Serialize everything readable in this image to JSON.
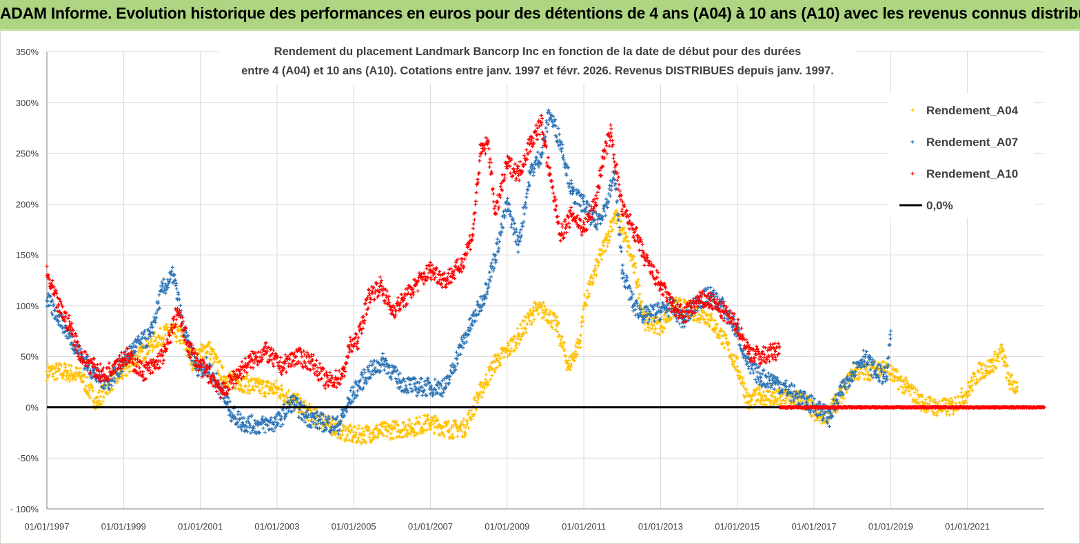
{
  "header": {
    "title": "ADAM Informe. Evolution historique des performances en euros pour des détentions de 4 ans (A04) à 10 ans (A10) avec les revenus connus distribués"
  },
  "chart_data": {
    "type": "scatter",
    "title_lines": [
      "Rendement du placement Landmark Bancorp Inc en fonction de la date de début pour des durées",
      "entre 4 (A04) et 10 ans (A10).  Cotations entre janv. 1997 et févr. 2026. Revenus DISTRIBUES depuis janv. 1997."
    ],
    "x_range": [
      1997.0,
      2023.0
    ],
    "x_ticks": [
      "01/01/1997",
      "01/01/1999",
      "01/01/2001",
      "01/01/2003",
      "01/01/2005",
      "01/01/2007",
      "01/01/2009",
      "01/01/2011",
      "01/01/2013",
      "01/01/2015",
      "01/01/2017",
      "01/01/2019",
      "01/01/2021"
    ],
    "y_range": [
      -100,
      350
    ],
    "y_ticks": [
      "350%",
      "300%",
      "250%",
      "200%",
      "150%",
      "100%",
      "50%",
      "0%",
      "-50%",
      "- 100%"
    ],
    "y_tick_values": [
      350,
      300,
      250,
      200,
      150,
      100,
      50,
      0,
      -50,
      -100
    ],
    "grid": true,
    "legend_position": "top-right",
    "colors": {
      "A04": "#ffc000",
      "A07": "#2e75b6",
      "A10": "#ff0000",
      "zero": "#000000",
      "grid": "#d9d9d9",
      "axis": "#7f7f7f"
    },
    "series": [
      {
        "name": "Rendement_A04",
        "color": "#ffc000",
        "x": [
          1997.0,
          1997.5,
          1997.9,
          1998.3,
          1998.6,
          1999.0,
          1999.4,
          1999.8,
          2000.2,
          2000.5,
          2000.8,
          2001.2,
          2001.6,
          2002.0,
          2002.5,
          2003.0,
          2003.5,
          2004.0,
          2004.5,
          2005.0,
          2005.5,
          2006.0,
          2006.5,
          2007.0,
          2007.5,
          2007.9,
          2008.3,
          2008.7,
          2009.0,
          2009.3,
          2009.7,
          2010.0,
          2010.3,
          2010.6,
          2010.9,
          2011.0,
          2011.3,
          2011.6,
          2011.8,
          2012.0,
          2012.3,
          2012.6,
          2013.0,
          2013.4,
          2013.8,
          2014.2,
          2014.6,
          2015.0,
          2015.3,
          2015.6,
          2016.0,
          2016.4,
          2016.8,
          2017.1,
          2017.4,
          2017.7,
          2018.0,
          2018.4,
          2018.8,
          2019.1,
          2019.4,
          2019.8,
          2020.2,
          2020.6,
          2021.0,
          2021.3,
          2021.6,
          2021.9,
          2022.1,
          2022.3
        ],
        "y": [
          35,
          35,
          30,
          5,
          22,
          35,
          50,
          65,
          75,
          70,
          45,
          60,
          30,
          25,
          20,
          18,
          5,
          -10,
          -20,
          -28,
          -25,
          -22,
          -20,
          -15,
          -22,
          -20,
          15,
          45,
          55,
          70,
          95,
          95,
          80,
          40,
          65,
          100,
          135,
          165,
          190,
          175,
          140,
          85,
          80,
          100,
          95,
          90,
          70,
          40,
          5,
          12,
          8,
          10,
          5,
          -10,
          -5,
          10,
          35,
          35,
          40,
          30,
          20,
          5,
          0,
          0,
          15,
          35,
          40,
          55,
          25,
          20
        ]
      },
      {
        "name": "Rendement_A07",
        "color": "#2e75b6",
        "x": [
          1997.0,
          1997.3,
          1997.6,
          1997.9,
          1998.3,
          1998.6,
          1999.0,
          1999.3,
          1999.7,
          2000.0,
          2000.3,
          2000.6,
          2000.9,
          2001.2,
          2001.5,
          2001.8,
          2002.1,
          2002.5,
          2003.0,
          2003.4,
          2003.8,
          2004.2,
          2004.6,
          2005.0,
          2005.4,
          2005.8,
          2006.2,
          2006.6,
          2007.0,
          2007.4,
          2007.8,
          2008.1,
          2008.4,
          2008.7,
          2009.0,
          2009.3,
          2009.6,
          2009.9,
          2010.1,
          2010.4,
          2010.7,
          2011.0,
          2011.3,
          2011.6,
          2011.8,
          2012.0,
          2012.3,
          2012.6,
          2013.0,
          2013.3,
          2013.6,
          2014.0,
          2014.3,
          2014.6,
          2015.0,
          2015.3,
          2015.6,
          2016.0,
          2016.4,
          2016.8,
          2017.1,
          2017.4,
          2017.7,
          2018.0,
          2018.3,
          2018.6,
          2018.9,
          2019.0
        ],
        "y": [
          105,
          90,
          70,
          50,
          30,
          25,
          45,
          60,
          70,
          115,
          130,
          70,
          40,
          40,
          20,
          -5,
          -15,
          -18,
          -15,
          5,
          -10,
          -15,
          -18,
          15,
          35,
          45,
          25,
          20,
          20,
          20,
          60,
          85,
          110,
          150,
          200,
          160,
          230,
          250,
          290,
          260,
          210,
          200,
          180,
          200,
          230,
          135,
          100,
          90,
          95,
          100,
          85,
          105,
          110,
          100,
          75,
          40,
          30,
          25,
          15,
          5,
          0,
          -10,
          15,
          35,
          50,
          35,
          30,
          75
        ]
      },
      {
        "name": "Rendement_A10",
        "color": "#ff0000",
        "x": [
          1997.0,
          1997.3,
          1997.6,
          1997.9,
          1998.2,
          1998.5,
          1998.8,
          1999.1,
          1999.5,
          1999.8,
          2000.1,
          2000.4,
          2000.7,
          2001.0,
          2001.3,
          2001.6,
          2001.9,
          2002.3,
          2002.7,
          2003.1,
          2003.5,
          2003.9,
          2004.3,
          2004.7,
          2004.9,
          2005.1,
          2005.4,
          2005.7,
          2006.0,
          2006.3,
          2006.6,
          2007.0,
          2007.4,
          2007.8,
          2008.1,
          2008.3,
          2008.5,
          2008.7,
          2009.0,
          2009.3,
          2009.6,
          2009.9,
          2010.1,
          2010.4,
          2010.7,
          2011.0,
          2011.3,
          2011.5,
          2011.7,
          2012.0,
          2012.3,
          2012.6,
          2013.0,
          2013.3,
          2013.6,
          2014.0,
          2014.3,
          2014.6,
          2015.0,
          2015.3,
          2015.6,
          2016.0,
          2016.1
        ],
        "y": [
          130,
          100,
          80,
          50,
          40,
          30,
          45,
          50,
          35,
          40,
          55,
          95,
          60,
          40,
          30,
          15,
          30,
          45,
          55,
          40,
          50,
          45,
          25,
          30,
          60,
          65,
          110,
          120,
          95,
          105,
          120,
          135,
          125,
          140,
          170,
          250,
          260,
          190,
          240,
          230,
          260,
          280,
          230,
          170,
          190,
          175,
          200,
          245,
          270,
          195,
          175,
          145,
          120,
          100,
          90,
          105,
          105,
          95,
          80,
          55,
          50,
          55,
          60
        ]
      },
      {
        "name": "Rendement_A10 (zéro)",
        "color": "#ff0000",
        "x": [
          2016.1,
          2023.0
        ],
        "y": [
          0,
          0
        ]
      }
    ],
    "reference_line": {
      "name": "0,0%",
      "y": 0
    }
  },
  "legend": [
    {
      "label": "Rendement_A04",
      "color": "#ffc000",
      "marker": "+"
    },
    {
      "label": "Rendement_A07",
      "color": "#2e75b6",
      "marker": "+"
    },
    {
      "label": "Rendement_A10",
      "color": "#ff0000",
      "marker": "+"
    },
    {
      "label": "0,0%",
      "color": "#000000",
      "marker": "line"
    }
  ]
}
